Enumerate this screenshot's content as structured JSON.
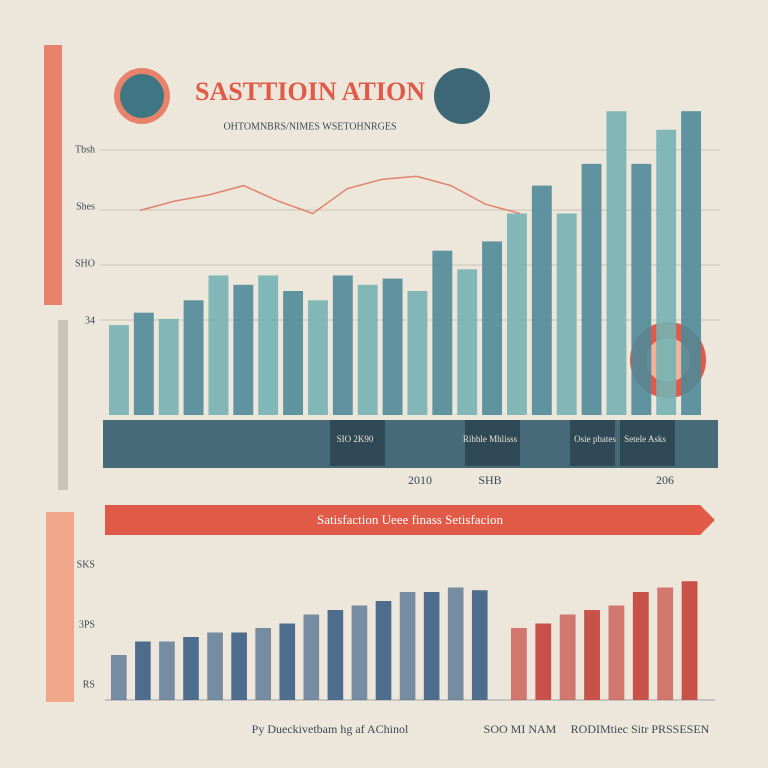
{
  "chart_data": [
    {
      "type": "bar",
      "title": "SASTTIOIN ATION",
      "subtitle": "OHTOMNBRS/NIMES WSETOHNRGES",
      "axis_labels": [
        "Tbsh",
        "Shes",
        "SHO",
        "34"
      ],
      "values": [
        29,
        33,
        31,
        37,
        45,
        42,
        45,
        40,
        37,
        45,
        42,
        44,
        40,
        53,
        47,
        56,
        65,
        74,
        65,
        81,
        98,
        81,
        92,
        98
      ],
      "color": "#4f8a99",
      "line": {
        "color": "#e0846e",
        "values": [
          66,
          69,
          71,
          74,
          69,
          65,
          73,
          76,
          77,
          74,
          68,
          65
        ]
      },
      "ylim": [
        0,
        100
      ],
      "box_labels": [
        "SIO 2K90",
        "Ribhle Mhlisss",
        "Osie pbates",
        "Setele Asks"
      ],
      "x_labels": [
        "2010",
        "SHB",
        "206"
      ]
    },
    {
      "type": "bar",
      "banner": "Satisfaction Ueee finass Setisfacion",
      "axis_labels": [
        "SKS",
        "3PS",
        "RS"
      ],
      "series": [
        {
          "color": "#4e6d8c",
          "values": [
            50,
            65,
            65,
            70,
            75,
            75,
            80,
            85,
            95,
            100,
            105,
            110,
            120,
            120,
            125,
            122
          ]
        },
        {
          "color": "#c8524a",
          "values": [
            80,
            85,
            95,
            100,
            105,
            120,
            125,
            132
          ]
        }
      ],
      "ylim": [
        0,
        150
      ],
      "footer": [
        "Py Dueckivetbam hg af AChinol",
        "SOO MI NAM",
        "RODIMtiec Sitr PRSSESEN"
      ]
    }
  ]
}
